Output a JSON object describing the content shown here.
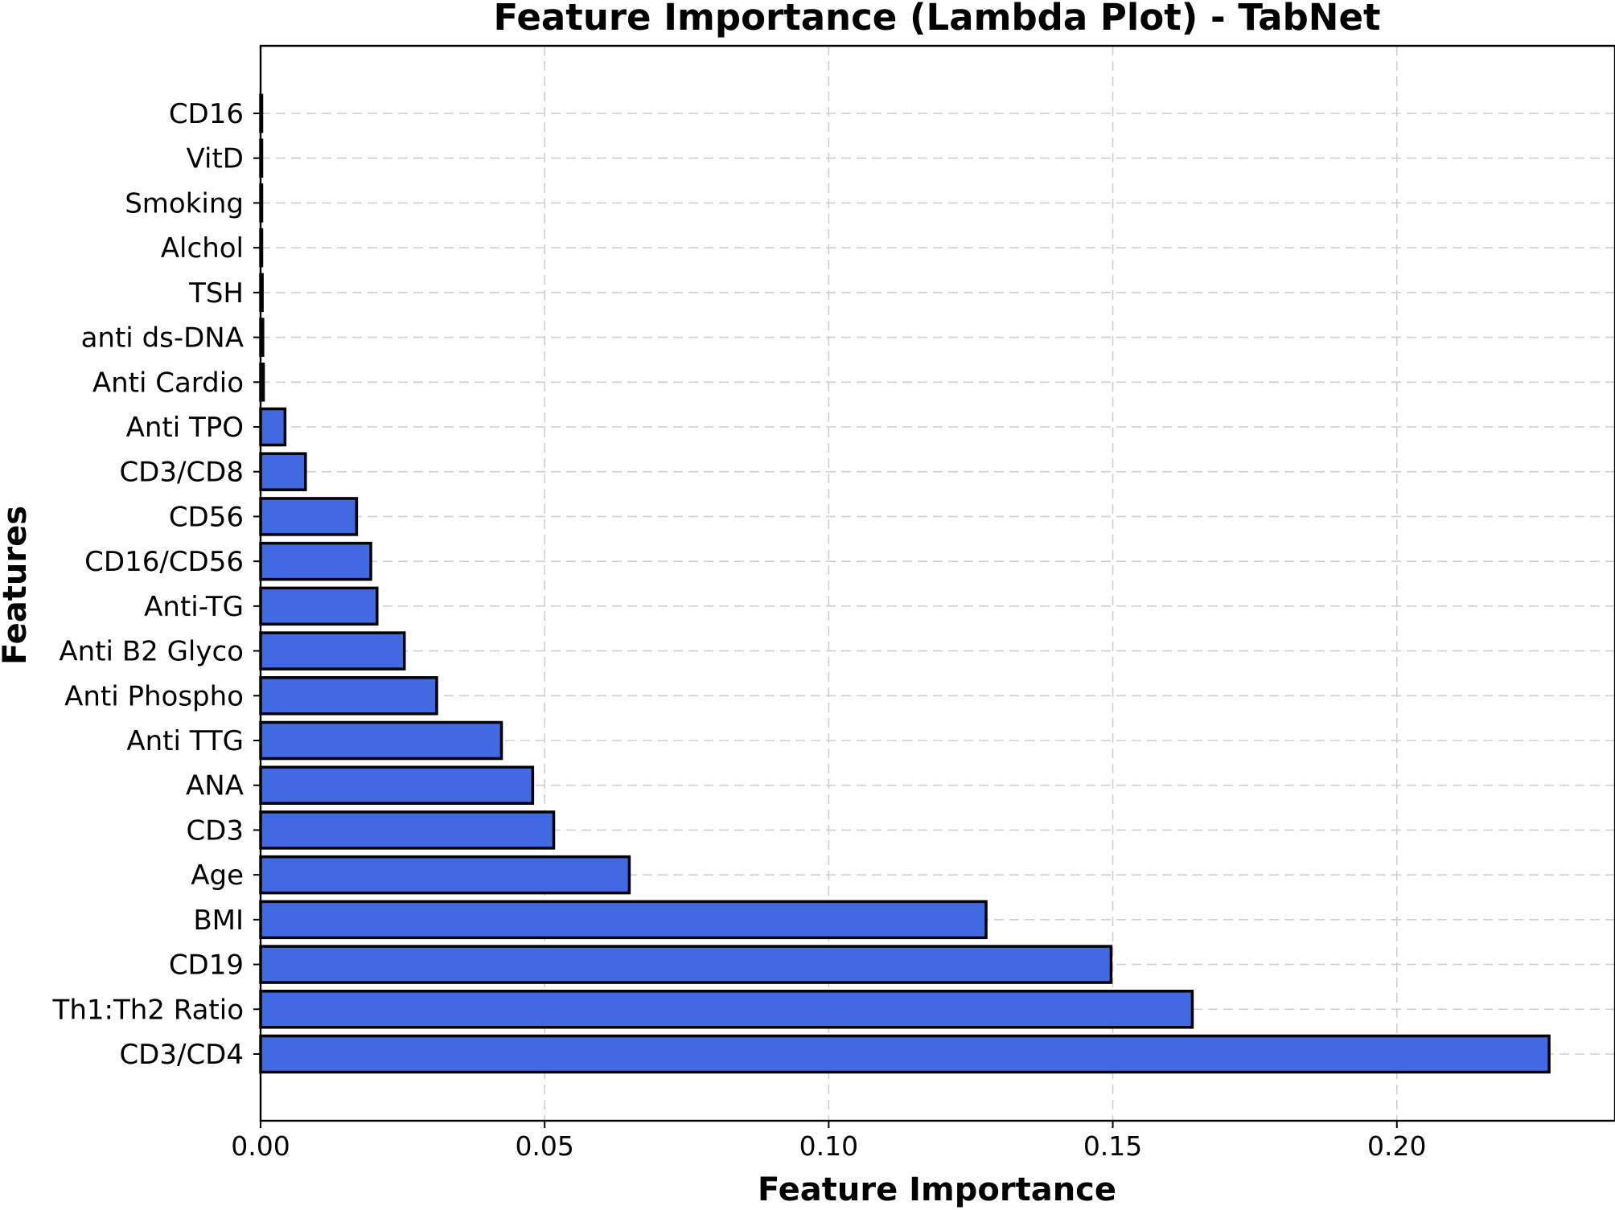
{
  "chart_data": {
    "type": "bar",
    "orientation": "horizontal",
    "title": "Feature Importance (Lambda Plot) - TabNet",
    "xlabel": "Feature Importance",
    "ylabel": "Features",
    "xlim": [
      0,
      0.2384
    ],
    "xticks": [
      0.0,
      0.05,
      0.1,
      0.15,
      0.2
    ],
    "xtick_labels": [
      "0.00",
      "0.05",
      "0.10",
      "0.15",
      "0.20"
    ],
    "grid": true,
    "bar_color": "#4169e1",
    "bar_edge_color": "#000000",
    "categories": [
      "CD16",
      "VitD",
      "Smoking",
      "Alchol",
      "TSH",
      "anti ds-DNA",
      "Anti Cardio",
      "Anti TPO",
      "CD3/CD8",
      "CD56",
      "CD16/CD56",
      "Anti-TG",
      "Anti B2 Glyco",
      "Anti Phospho",
      "Anti TTG",
      "ANA",
      "CD3",
      "Age",
      "BMI",
      "CD19",
      "Th1:Th2 Ratio",
      "CD3/CD4"
    ],
    "values": [
      0.0001,
      0.0001,
      0.0002,
      0.0002,
      0.0003,
      0.0004,
      0.0005,
      0.0043,
      0.0079,
      0.0169,
      0.0194,
      0.0205,
      0.0253,
      0.031,
      0.0424,
      0.0479,
      0.0516,
      0.0649,
      0.1277,
      0.1497,
      0.164,
      0.2268
    ]
  }
}
